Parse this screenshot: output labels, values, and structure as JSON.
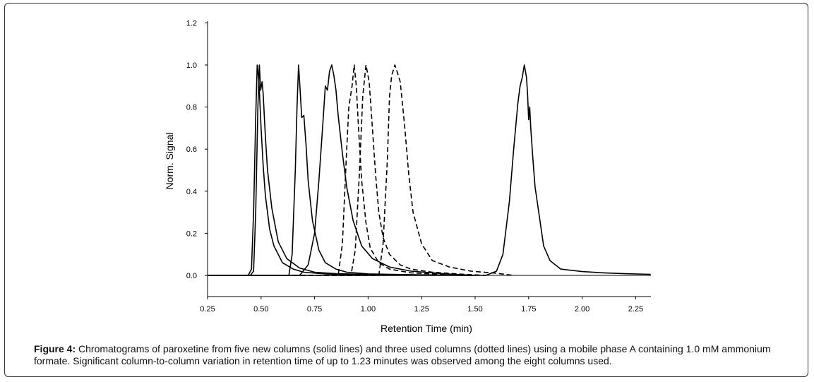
{
  "chart_data": {
    "type": "line",
    "xlabel": "Retention Time (min)",
    "ylabel": "Norm. Signal",
    "xlim": [
      0.25,
      2.32
    ],
    "ylim": [
      -0.1,
      1.2
    ],
    "xticks": [
      0.25,
      0.5,
      0.75,
      1.0,
      1.25,
      1.5,
      1.75,
      2.0,
      2.25
    ],
    "xtick_labels": [
      "0.25",
      "0.50",
      "0.75",
      "1.00",
      "1.25",
      "1.50",
      "1.75",
      "2.00",
      "2.25"
    ],
    "yticks": [
      0.0,
      0.2,
      0.4,
      0.6,
      0.8,
      1.0,
      1.2
    ],
    "ytick_labels": [
      "0.0",
      "0.2",
      "0.4",
      "0.6",
      "0.8",
      "1.0",
      "1.2"
    ],
    "grid": false,
    "series": [
      {
        "style": "solid",
        "x": [
          0.25,
          0.44,
          0.455,
          0.465,
          0.475,
          0.482,
          0.49,
          0.5,
          0.51,
          0.52,
          0.54,
          0.56,
          0.6,
          0.65,
          0.7,
          0.8,
          0.9,
          1.0,
          1.2,
          1.5
        ],
        "y": [
          0.0,
          0.0,
          0.03,
          0.3,
          0.75,
          1.0,
          0.92,
          0.7,
          0.52,
          0.38,
          0.22,
          0.14,
          0.06,
          0.03,
          0.015,
          0.007,
          0.004,
          0.003,
          0.002,
          0.0
        ]
      },
      {
        "style": "solid",
        "x": [
          0.25,
          0.45,
          0.465,
          0.475,
          0.485,
          0.492,
          0.498,
          0.505,
          0.51,
          0.52,
          0.53,
          0.55,
          0.58,
          0.62,
          0.68,
          0.75,
          0.85,
          1.0,
          1.3,
          1.5
        ],
        "y": [
          0.0,
          0.0,
          0.02,
          0.3,
          0.8,
          1.0,
          0.88,
          0.92,
          0.86,
          0.66,
          0.5,
          0.32,
          0.16,
          0.08,
          0.035,
          0.015,
          0.008,
          0.005,
          0.002,
          0.0
        ]
      },
      {
        "style": "solid",
        "x": [
          0.25,
          0.63,
          0.645,
          0.66,
          0.668,
          0.675,
          0.68,
          0.69,
          0.7,
          0.71,
          0.72,
          0.74,
          0.77,
          0.8,
          0.85,
          0.9,
          1.0,
          1.2,
          1.5
        ],
        "y": [
          0.0,
          0.0,
          0.1,
          0.5,
          0.8,
          1.0,
          0.92,
          0.75,
          0.76,
          0.62,
          0.45,
          0.26,
          0.12,
          0.06,
          0.03,
          0.015,
          0.007,
          0.003,
          0.0
        ]
      },
      {
        "style": "solid",
        "x": [
          0.25,
          0.68,
          0.72,
          0.75,
          0.77,
          0.79,
          0.8,
          0.81,
          0.82,
          0.83,
          0.84,
          0.85,
          0.86,
          0.88,
          0.9,
          0.93,
          0.97,
          1.02,
          1.1,
          1.2,
          1.35,
          1.5
        ],
        "y": [
          0.0,
          0.0,
          0.05,
          0.2,
          0.45,
          0.74,
          0.9,
          0.88,
          0.97,
          1.0,
          0.95,
          0.88,
          0.76,
          0.58,
          0.42,
          0.26,
          0.14,
          0.08,
          0.04,
          0.02,
          0.008,
          0.0
        ]
      },
      {
        "style": "dashed",
        "x": [
          0.25,
          0.86,
          0.88,
          0.9,
          0.91,
          0.925,
          0.935,
          0.945,
          0.955,
          0.97,
          0.99,
          1.01,
          1.05,
          1.1,
          1.2,
          1.35,
          1.5
        ],
        "y": [
          0.0,
          0.0,
          0.15,
          0.6,
          0.8,
          0.9,
          1.0,
          0.9,
          0.7,
          0.45,
          0.25,
          0.13,
          0.06,
          0.03,
          0.012,
          0.005,
          0.0
        ]
      },
      {
        "style": "dashed",
        "x": [
          0.25,
          0.92,
          0.94,
          0.96,
          0.975,
          0.99,
          1.005,
          1.02,
          1.035,
          1.05,
          1.07,
          1.1,
          1.15,
          1.2,
          1.3,
          1.45,
          1.55
        ],
        "y": [
          0.0,
          0.0,
          0.12,
          0.5,
          0.85,
          1.0,
          0.92,
          0.7,
          0.48,
          0.3,
          0.18,
          0.1,
          0.05,
          0.03,
          0.015,
          0.005,
          0.0
        ]
      },
      {
        "style": "dashed",
        "x": [
          0.25,
          1.05,
          1.07,
          1.09,
          1.1,
          1.11,
          1.125,
          1.135,
          1.15,
          1.17,
          1.19,
          1.21,
          1.25,
          1.3,
          1.38,
          1.48,
          1.6,
          1.68
        ],
        "y": [
          0.0,
          0.0,
          0.15,
          0.55,
          0.85,
          0.95,
          1.0,
          0.97,
          0.92,
          0.72,
          0.48,
          0.3,
          0.15,
          0.07,
          0.04,
          0.02,
          0.01,
          0.0
        ]
      },
      {
        "style": "solid",
        "x": [
          0.25,
          1.55,
          1.6,
          1.63,
          1.66,
          1.68,
          1.7,
          1.71,
          1.72,
          1.73,
          1.74,
          1.745,
          1.75,
          1.755,
          1.76,
          1.77,
          1.78,
          1.8,
          1.82,
          1.85,
          1.9,
          2.0,
          2.1,
          2.2,
          2.32
        ],
        "y": [
          0.0,
          0.0,
          0.02,
          0.1,
          0.35,
          0.6,
          0.82,
          0.9,
          0.94,
          1.0,
          0.94,
          0.86,
          0.74,
          0.8,
          0.7,
          0.55,
          0.42,
          0.28,
          0.14,
          0.07,
          0.03,
          0.018,
          0.012,
          0.008,
          0.005
        ]
      }
    ]
  },
  "caption": {
    "label": "Figure 4:",
    "text": " Chromatograms of paroxetine from five new columns (solid lines) and three used columns (dotted lines) using a mobile phase A containing 1.0 mM ammonium formate. Significant column-to-column variation in retention time of up to 1.23 minutes was observed among the eight columns used."
  }
}
